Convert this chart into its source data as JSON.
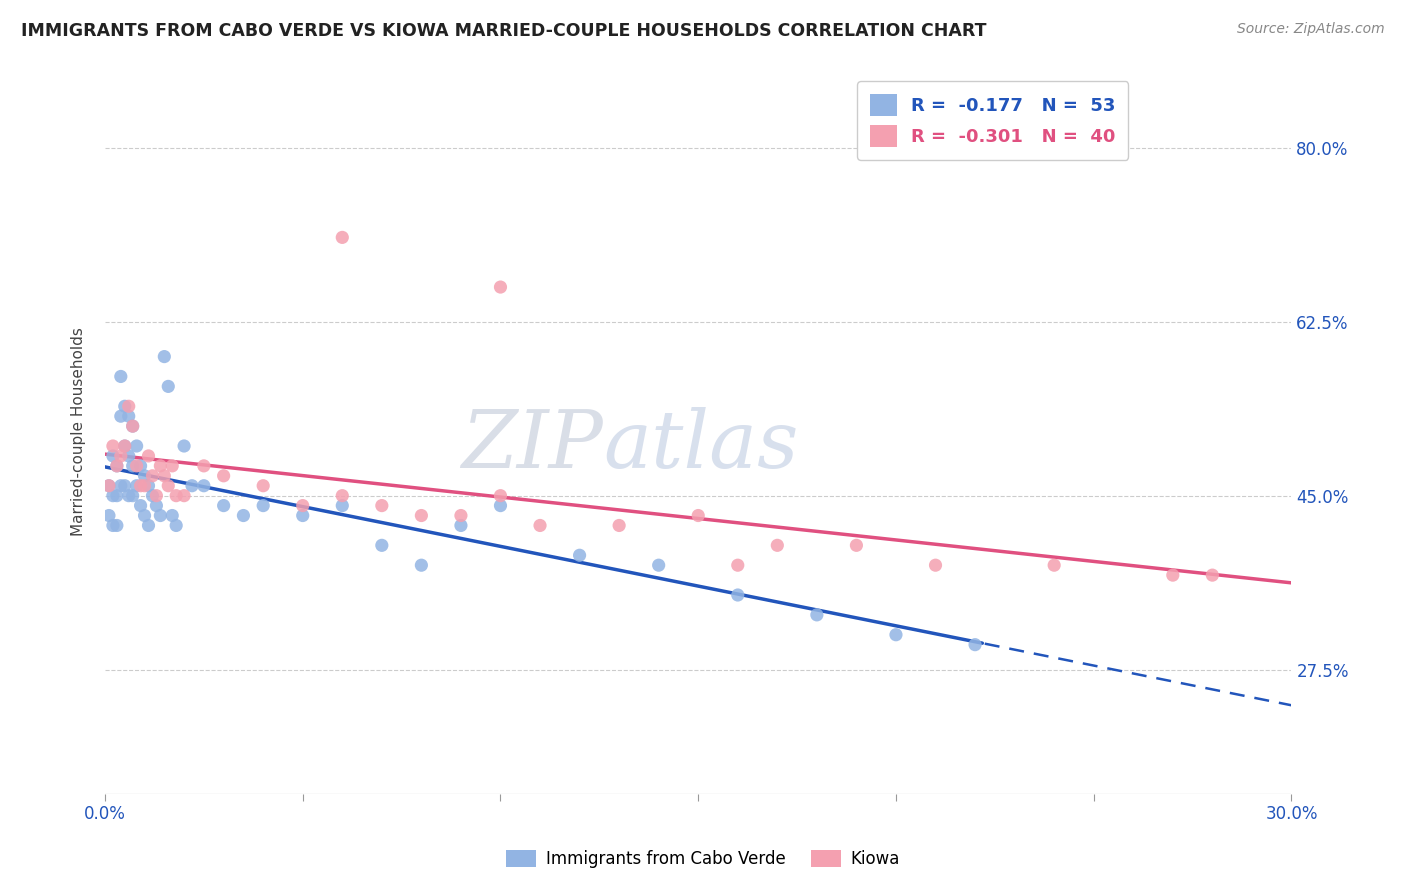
{
  "title": "IMMIGRANTS FROM CABO VERDE VS KIOWA MARRIED-COUPLE HOUSEHOLDS CORRELATION CHART",
  "source": "Source: ZipAtlas.com",
  "ylabel": "Married-couple Households",
  "yticks": [
    "80.0%",
    "62.5%",
    "45.0%",
    "27.5%"
  ],
  "ytick_vals": [
    0.8,
    0.625,
    0.45,
    0.275
  ],
  "xmin": 0.0,
  "xmax": 0.3,
  "ymin": 0.15,
  "ymax": 0.88,
  "legend_r1_val": "-0.177",
  "legend_n1_val": "53",
  "legend_r2_val": "-0.301",
  "legend_n2_val": "40",
  "cabo_verde_color": "#92b4e3",
  "kiowa_color": "#f4a0b0",
  "cabo_verde_line_color": "#2255bb",
  "kiowa_line_color": "#e05080",
  "watermark_zip": "ZIP",
  "watermark_atlas": "atlas",
  "cabo_verde_x": [
    0.001,
    0.001,
    0.002,
    0.002,
    0.002,
    0.003,
    0.003,
    0.003,
    0.004,
    0.004,
    0.004,
    0.005,
    0.005,
    0.005,
    0.006,
    0.006,
    0.006,
    0.007,
    0.007,
    0.007,
    0.008,
    0.008,
    0.009,
    0.009,
    0.01,
    0.01,
    0.011,
    0.011,
    0.012,
    0.013,
    0.014,
    0.015,
    0.016,
    0.017,
    0.018,
    0.02,
    0.022,
    0.025,
    0.03,
    0.035,
    0.04,
    0.05,
    0.06,
    0.07,
    0.08,
    0.09,
    0.1,
    0.12,
    0.14,
    0.16,
    0.18,
    0.2,
    0.22
  ],
  "cabo_verde_y": [
    0.46,
    0.43,
    0.49,
    0.45,
    0.42,
    0.48,
    0.45,
    0.42,
    0.57,
    0.53,
    0.46,
    0.54,
    0.5,
    0.46,
    0.53,
    0.49,
    0.45,
    0.52,
    0.48,
    0.45,
    0.5,
    0.46,
    0.48,
    0.44,
    0.47,
    0.43,
    0.46,
    0.42,
    0.45,
    0.44,
    0.43,
    0.59,
    0.56,
    0.43,
    0.42,
    0.5,
    0.46,
    0.46,
    0.44,
    0.43,
    0.44,
    0.43,
    0.44,
    0.4,
    0.38,
    0.42,
    0.44,
    0.39,
    0.38,
    0.35,
    0.33,
    0.31,
    0.3
  ],
  "kiowa_x": [
    0.001,
    0.002,
    0.003,
    0.004,
    0.005,
    0.006,
    0.007,
    0.008,
    0.009,
    0.01,
    0.011,
    0.012,
    0.013,
    0.014,
    0.015,
    0.016,
    0.017,
    0.018,
    0.02,
    0.025,
    0.03,
    0.04,
    0.05,
    0.06,
    0.07,
    0.08,
    0.09,
    0.1,
    0.11,
    0.13,
    0.15,
    0.17,
    0.19,
    0.21,
    0.24,
    0.27,
    0.06,
    0.1,
    0.16,
    0.28
  ],
  "kiowa_y": [
    0.46,
    0.5,
    0.48,
    0.49,
    0.5,
    0.54,
    0.52,
    0.48,
    0.46,
    0.46,
    0.49,
    0.47,
    0.45,
    0.48,
    0.47,
    0.46,
    0.48,
    0.45,
    0.45,
    0.48,
    0.47,
    0.46,
    0.44,
    0.45,
    0.44,
    0.43,
    0.43,
    0.45,
    0.42,
    0.42,
    0.43,
    0.4,
    0.4,
    0.38,
    0.38,
    0.37,
    0.71,
    0.66,
    0.38,
    0.37
  ]
}
